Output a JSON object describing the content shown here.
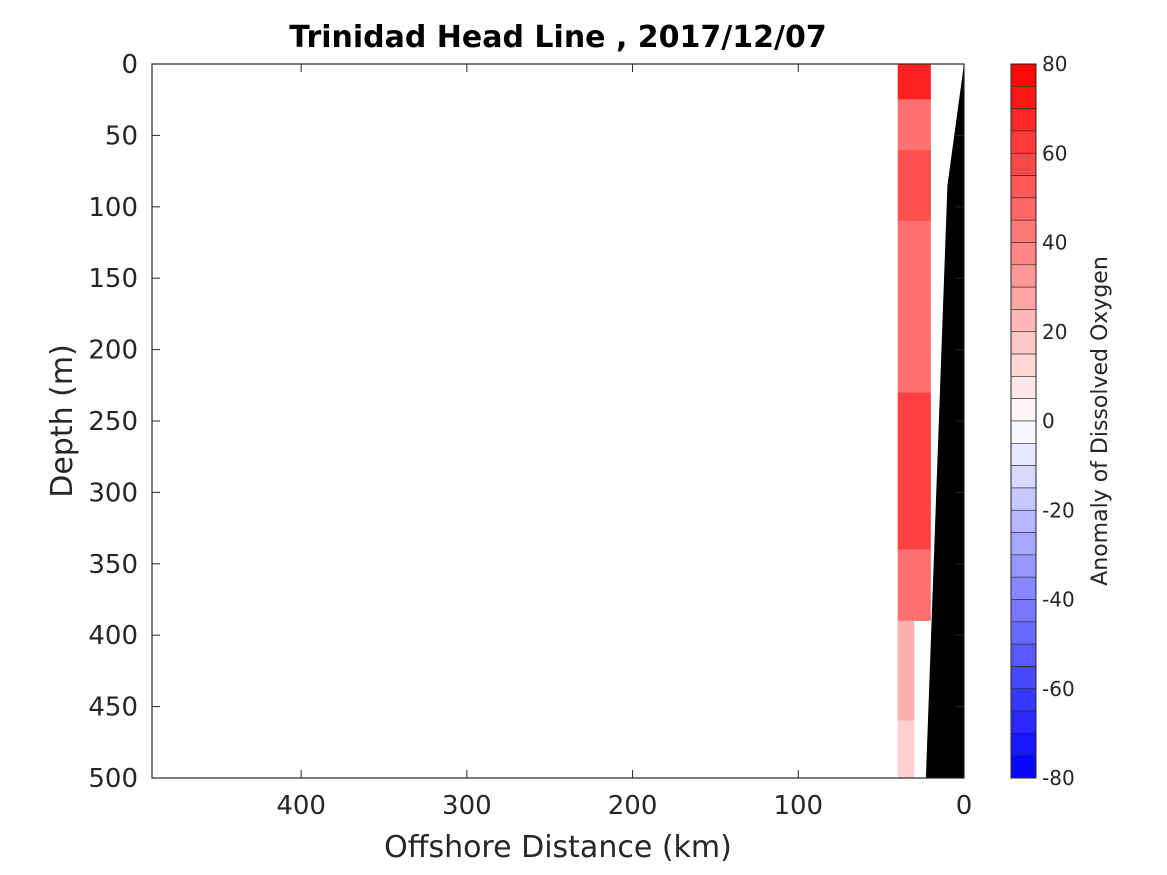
{
  "chart_data": {
    "type": "heatmap",
    "title": "Trinidad Head Line , 2017/12/07",
    "xlabel": "Offshore Distance (km)",
    "ylabel": "Depth (m)",
    "xlim": [
      490,
      0
    ],
    "ylim": [
      0,
      500
    ],
    "x_reversed": true,
    "y_reversed": true,
    "xticks": [
      400,
      300,
      200,
      100,
      0
    ],
    "yticks": [
      0,
      50,
      100,
      150,
      200,
      250,
      300,
      350,
      400,
      450,
      500
    ],
    "colorbar": {
      "label": "Anomaly of Dissolved Oxygen",
      "range": [
        -80,
        80
      ],
      "levels_step": 5,
      "ticks": [
        80,
        60,
        40,
        20,
        0,
        -20,
        -40,
        -60,
        -80
      ],
      "colormap": "blue-white-red",
      "low_color": "#0000ff",
      "high_color": "#ff0000",
      "mid_color": "#ffffff"
    },
    "bathymetry_color": "#000000",
    "bathymetry": {
      "x": [
        0,
        10,
        23,
        23,
        0
      ],
      "depth": [
        0,
        85,
        500,
        500,
        500
      ]
    },
    "anomaly_fields": [
      {
        "x_range": [
          20,
          40
        ],
        "depth_range": [
          0,
          25
        ],
        "value": 70
      },
      {
        "x_range": [
          20,
          40
        ],
        "depth_range": [
          25,
          60
        ],
        "value": 45
      },
      {
        "x_range": [
          20,
          40
        ],
        "depth_range": [
          60,
          110
        ],
        "value": 55
      },
      {
        "x_range": [
          20,
          40
        ],
        "depth_range": [
          110,
          230
        ],
        "value": 45
      },
      {
        "x_range": [
          20,
          40
        ],
        "depth_range": [
          230,
          340
        ],
        "value": 60
      },
      {
        "x_range": [
          20,
          40
        ],
        "depth_range": [
          340,
          390
        ],
        "value": 45
      },
      {
        "x_range": [
          30,
          40
        ],
        "depth_range": [
          390,
          460
        ],
        "value": 25
      },
      {
        "x_range": [
          30,
          40
        ],
        "depth_range": [
          460,
          500
        ],
        "value": 15
      }
    ]
  }
}
